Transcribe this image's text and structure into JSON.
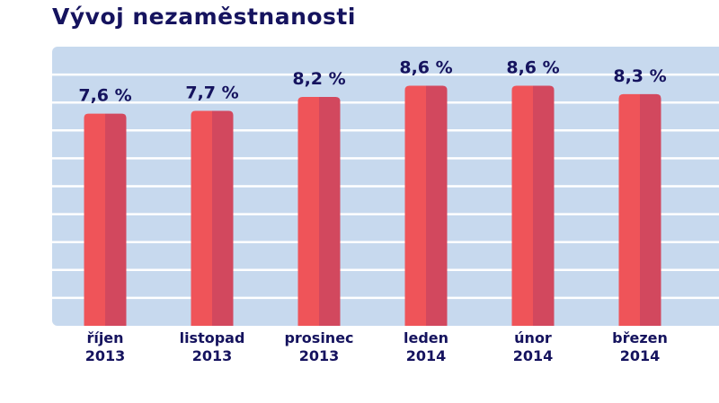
{
  "chart_data": {
    "type": "bar",
    "title": "Vývoj nezaměstnanosti",
    "categories": [
      [
        "říjen",
        "2013"
      ],
      [
        "listopad",
        "2013"
      ],
      [
        "prosinec",
        "2013"
      ],
      [
        "leden",
        "2014"
      ],
      [
        "únor",
        "2014"
      ],
      [
        "březen",
        "2014"
      ]
    ],
    "values": [
      7.6,
      7.7,
      8.2,
      8.6,
      8.6,
      8.3
    ],
    "data_labels": [
      "7,6 %",
      "7,7 %",
      "8,2 %",
      "8,6 %",
      "8,6 %",
      "8,3 %"
    ],
    "xlabel": "",
    "ylabel": "",
    "ylim": [
      0,
      10
    ],
    "grid": true,
    "colors": {
      "bar_light": "#EF5459",
      "bar_dark": "#D2485E",
      "plot_bg": "#C7D9EE",
      "gridline": "#FFFFFF",
      "text": "#15135E"
    }
  }
}
